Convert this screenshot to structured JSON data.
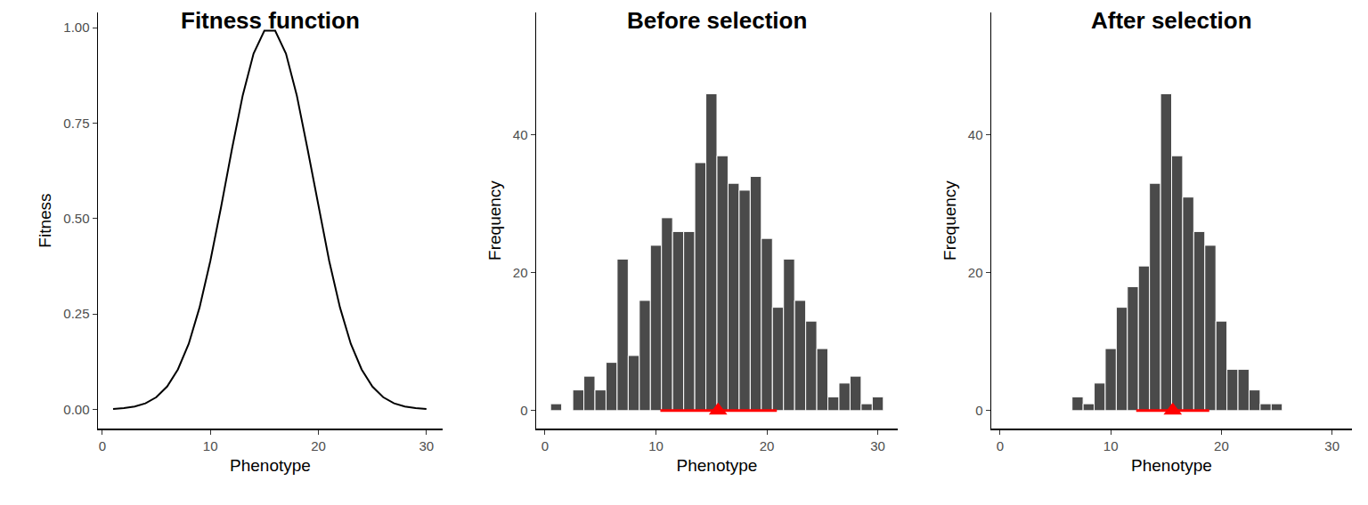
{
  "chart_data": [
    {
      "type": "line",
      "title": "Fitness function",
      "x_label": "Phenotype",
      "y_label": "Fitness",
      "color": "#000000",
      "x": [
        1,
        2,
        3,
        4,
        5,
        6,
        7,
        8,
        9,
        10,
        11,
        12,
        13,
        14,
        15,
        16,
        17,
        18,
        19,
        20,
        21,
        22,
        23,
        24,
        25,
        26,
        27,
        28,
        29,
        30
      ],
      "values": [
        0.0014,
        0.0034,
        0.0076,
        0.016,
        0.032,
        0.06,
        0.105,
        0.172,
        0.267,
        0.389,
        0.531,
        0.682,
        0.823,
        0.932,
        0.992,
        0.992,
        0.932,
        0.823,
        0.682,
        0.531,
        0.389,
        0.267,
        0.172,
        0.105,
        0.06,
        0.032,
        0.016,
        0.0076,
        0.0034,
        0.0014
      ],
      "xlim": [
        -0.4,
        31.5
      ],
      "xticks": [
        0,
        10,
        20,
        30
      ],
      "ylim": [
        -0.05,
        1.04
      ],
      "yticks": [
        {
          "value": 0,
          "label": "0.00"
        },
        {
          "value": 0.25,
          "label": "0.25"
        },
        {
          "value": 0.5,
          "label": "0.50"
        },
        {
          "value": 0.75,
          "label": "0.75"
        },
        {
          "value": 1,
          "label": "1.00"
        }
      ],
      "grid": false
    },
    {
      "type": "histogram",
      "title": "Before selection",
      "x_label": "Phenotype",
      "y_label": "Frequency",
      "color": "#4a4a4a",
      "bins": [
        0.5,
        1.5,
        2.5,
        3.5,
        4.5,
        5.5,
        6.5,
        7.5,
        8.5,
        9.5,
        10.5,
        11.5,
        12.5,
        13.5,
        14.5,
        15.5,
        16.5,
        17.5,
        18.5,
        19.5,
        20.5,
        21.5,
        22.5,
        23.5,
        24.5,
        25.5,
        26.5,
        27.5,
        28.5,
        29.5,
        30.5
      ],
      "values": [
        1,
        0,
        3,
        5,
        3,
        7,
        22,
        8,
        16,
        24,
        28,
        26,
        26,
        36,
        46,
        37,
        33,
        32,
        34,
        25,
        15,
        22,
        16,
        13,
        9,
        2,
        4,
        5,
        1,
        2
      ],
      "mean": 15.6,
      "interval": [
        10.4,
        20.9
      ],
      "mean_color": "#ff0000",
      "xlim": [
        -0.8,
        31.8
      ],
      "xticks": [
        0,
        10,
        20,
        30
      ],
      "ylim": [
        -2.6,
        57.8
      ],
      "yticks": [
        0,
        20,
        40
      ],
      "grid": false
    },
    {
      "type": "histogram",
      "title": "After selection",
      "x_label": "Phenotype",
      "y_label": "Frequency",
      "color": "#4a4a4a",
      "bins": [
        6.5,
        7.5,
        8.5,
        9.5,
        10.5,
        11.5,
        12.5,
        13.5,
        14.5,
        15.5,
        16.5,
        17.5,
        18.5,
        19.5,
        20.5,
        21.5,
        22.5,
        23.5,
        24.5,
        25.5
      ],
      "values": [
        2,
        1,
        4,
        9,
        15,
        18,
        21,
        33,
        46,
        37,
        31,
        26,
        24,
        13,
        6,
        6,
        3,
        1,
        1
      ],
      "mean": 15.6,
      "interval": [
        12.3,
        18.9
      ],
      "mean_color": "#ff0000",
      "xlim": [
        -0.8,
        31.8
      ],
      "xticks": [
        0,
        10,
        20,
        30
      ],
      "ylim": [
        -2.6,
        57.8
      ],
      "yticks": [
        0,
        20,
        40
      ],
      "grid": false
    }
  ]
}
